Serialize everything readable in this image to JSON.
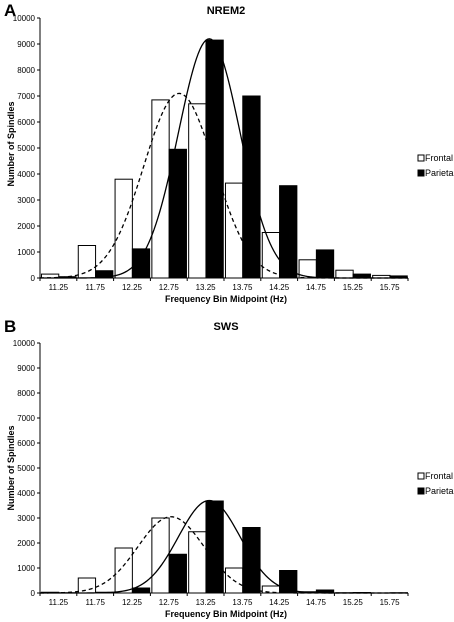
{
  "chart_data": [
    {
      "type": "bar",
      "panel": "A",
      "title": "NREM2",
      "xlabel": "Frequency Bin Midpoint (Hz)",
      "ylabel": "Number of Spindles",
      "ylim": [
        0,
        10000
      ],
      "yticks": [
        0,
        1000,
        2000,
        3000,
        4000,
        5000,
        6000,
        7000,
        8000,
        9000,
        10000
      ],
      "categories": [
        "11.25",
        "11.75",
        "12.25",
        "12.75",
        "13.25",
        "13.75",
        "14.25",
        "14.75",
        "15.25",
        "15.75"
      ],
      "grid": false,
      "legend": "right",
      "series": [
        {
          "name": "Frontal",
          "style": "open",
          "color": "#ffffff",
          "values": [
            150,
            1250,
            3800,
            6850,
            6700,
            3650,
            1750,
            700,
            300,
            100
          ],
          "fit_curve": {
            "style": "dashed",
            "mean": 12.89,
            "sd": 0.48,
            "peak": 7100
          }
        },
        {
          "name": "Parietal",
          "style": "filled",
          "color": "#000000",
          "values": [
            50,
            280,
            1120,
            4950,
            9150,
            7000,
            3550,
            1080,
            150,
            80
          ],
          "fit_curve": {
            "style": "solid",
            "mean": 13.3,
            "sd": 0.42,
            "peak": 9200
          }
        }
      ]
    },
    {
      "type": "bar",
      "panel": "B",
      "title": "SWS",
      "xlabel": "Frequency Bin Midpoint (Hz)",
      "ylabel": "Number of Spindles",
      "ylim": [
        0,
        10000
      ],
      "yticks": [
        0,
        1000,
        2000,
        3000,
        4000,
        5000,
        6000,
        7000,
        8000,
        9000,
        10000
      ],
      "categories": [
        "11.25",
        "11.75",
        "12.25",
        "12.75",
        "13.25",
        "13.75",
        "14.25",
        "14.75",
        "15.25",
        "15.75"
      ],
      "grid": false,
      "legend": "right",
      "series": [
        {
          "name": "Frontal",
          "style": "open",
          "color": "#ffffff",
          "values": [
            30,
            600,
            1800,
            3000,
            2450,
            1000,
            280,
            50,
            10,
            0
          ],
          "fit_curve": {
            "style": "dashed",
            "mean": 12.78,
            "sd": 0.45,
            "peak": 3050
          }
        },
        {
          "name": "Parietal",
          "style": "filled",
          "color": "#000000",
          "values": [
            10,
            30,
            200,
            1550,
            3680,
            2620,
            900,
            120,
            20,
            10
          ],
          "fit_curve": {
            "style": "solid",
            "mean": 13.3,
            "sd": 0.42,
            "peak": 3700
          }
        }
      ]
    }
  ]
}
